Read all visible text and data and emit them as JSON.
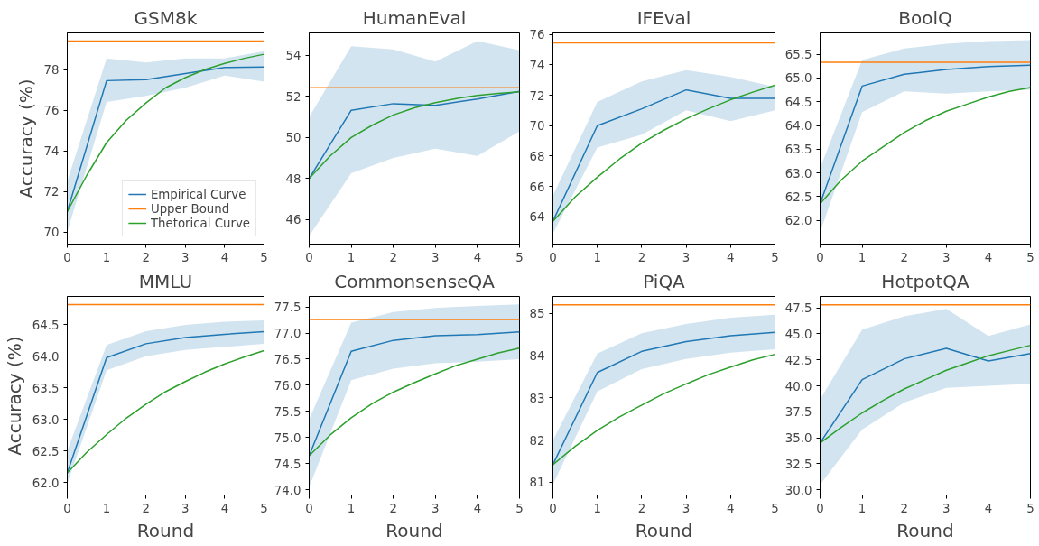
{
  "chart_data": [
    {
      "type": "line",
      "title": "GSM8k",
      "ylabel": "Accuracy (%)",
      "xlim": [
        0,
        5
      ],
      "ylim": [
        69.4,
        79.8
      ],
      "xticks": [
        0,
        1,
        2,
        3,
        4,
        5
      ],
      "yticks": [
        70,
        72,
        74,
        76,
        78
      ],
      "grid": false,
      "legend": "bottom right",
      "x": [
        0,
        1,
        2,
        3,
        4,
        5
      ],
      "series": [
        {
          "name": "Empirical Curve",
          "color": "#1f77b4",
          "values": [
            71.0,
            77.45,
            77.5,
            77.8,
            78.1,
            78.12
          ],
          "lower": [
            70.0,
            76.4,
            76.7,
            77.1,
            77.7,
            77.4
          ],
          "upper": [
            72.5,
            78.55,
            78.35,
            78.55,
            78.55,
            78.9
          ]
        },
        {
          "name": "Upper Bound",
          "color": "#ff7f0e",
          "x": [
            0,
            5
          ],
          "values": [
            79.4,
            79.4
          ]
        },
        {
          "name": "Thetorical Curve",
          "color": "#2ca02c",
          "x": [
            0,
            0.5,
            1,
            1.5,
            2,
            2.5,
            3,
            3.5,
            4,
            4.5,
            5
          ],
          "values": [
            71.0,
            72.8,
            74.4,
            75.5,
            76.35,
            77.1,
            77.6,
            78.0,
            78.3,
            78.55,
            78.75
          ]
        }
      ]
    },
    {
      "type": "line",
      "title": "HumanEval",
      "xlim": [
        0,
        5
      ],
      "ylim": [
        44.8,
        55.1
      ],
      "xticks": [
        0,
        1,
        2,
        3,
        4,
        5
      ],
      "yticks": [
        46,
        48,
        50,
        52,
        54
      ],
      "grid": false,
      "x": [
        0,
        1,
        2,
        3,
        4,
        5
      ],
      "series": [
        {
          "color": "#1f77b4",
          "values": [
            48.0,
            51.33,
            51.65,
            51.57,
            51.88,
            52.25
          ],
          "lower": [
            45.2,
            48.25,
            49.0,
            49.45,
            49.1,
            50.3
          ],
          "upper": [
            51.0,
            54.45,
            54.3,
            53.7,
            54.7,
            54.25
          ]
        },
        {
          "color": "#ff7f0e",
          "x": [
            0,
            5
          ],
          "values": [
            52.43,
            52.43
          ]
        },
        {
          "color": "#2ca02c",
          "x": [
            0,
            0.5,
            1,
            1.5,
            2,
            2.5,
            3,
            3.5,
            4,
            4.5,
            5
          ],
          "values": [
            48.0,
            49.1,
            50.0,
            50.6,
            51.1,
            51.45,
            51.7,
            51.9,
            52.05,
            52.15,
            52.23
          ]
        }
      ]
    },
    {
      "type": "line",
      "title": "IFEval",
      "xlim": [
        0,
        5
      ],
      "ylim": [
        62.2,
        76.1
      ],
      "xticks": [
        0,
        1,
        2,
        3,
        4,
        5
      ],
      "yticks": [
        64,
        66,
        68,
        70,
        72,
        74,
        76
      ],
      "grid": false,
      "x": [
        0,
        1,
        2,
        3,
        4,
        5
      ],
      "series": [
        {
          "color": "#1f77b4",
          "values": [
            63.7,
            70.0,
            71.1,
            72.35,
            71.8,
            71.8
          ],
          "lower": [
            62.9,
            68.55,
            69.4,
            71.0,
            70.3,
            71.0
          ],
          "upper": [
            65.4,
            71.55,
            72.9,
            73.65,
            73.2,
            72.55
          ]
        },
        {
          "color": "#ff7f0e",
          "x": [
            0,
            5
          ],
          "values": [
            75.45,
            75.45
          ]
        },
        {
          "color": "#2ca02c",
          "x": [
            0,
            0.5,
            1,
            1.5,
            2,
            2.5,
            3,
            3.5,
            4,
            4.5,
            5
          ],
          "values": [
            63.7,
            65.3,
            66.6,
            67.8,
            68.85,
            69.7,
            70.45,
            71.1,
            71.7,
            72.2,
            72.65
          ]
        }
      ]
    },
    {
      "type": "line",
      "title": "BoolQ",
      "xlim": [
        0,
        5
      ],
      "ylim": [
        61.5,
        65.95
      ],
      "xticks": [
        0,
        1,
        2,
        3,
        4,
        5
      ],
      "yticks": [
        {
          "value": 62,
          "label": "62.0"
        },
        62.5,
        {
          "value": 63,
          "label": "63.0"
        },
        63.5,
        {
          "value": 64,
          "label": "64.0"
        },
        64.5,
        {
          "value": 65,
          "label": "65.0"
        },
        65.5
      ],
      "grid": false,
      "x": [
        0,
        1,
        2,
        3,
        4,
        5
      ],
      "series": [
        {
          "color": "#1f77b4",
          "values": [
            62.35,
            64.83,
            65.08,
            65.18,
            65.24,
            65.27
          ],
          "lower": [
            61.75,
            64.28,
            64.72,
            64.67,
            64.72,
            64.75
          ],
          "upper": [
            63.1,
            65.38,
            65.62,
            65.72,
            65.78,
            65.8
          ]
        },
        {
          "color": "#ff7f0e",
          "x": [
            0,
            5
          ],
          "values": [
            65.33,
            65.33
          ]
        },
        {
          "color": "#2ca02c",
          "x": [
            0,
            0.5,
            1,
            1.5,
            2,
            2.5,
            3,
            3.5,
            4,
            4.5,
            5
          ],
          "values": [
            62.35,
            62.85,
            63.25,
            63.55,
            63.85,
            64.1,
            64.3,
            64.45,
            64.6,
            64.72,
            64.8
          ]
        }
      ]
    },
    {
      "type": "line",
      "title": "MMLU",
      "xlabel": "Round",
      "ylabel": "Accuracy (%)",
      "xlim": [
        0,
        5
      ],
      "ylim": [
        61.8,
        64.95
      ],
      "xticks": [
        0,
        1,
        2,
        3,
        4,
        5
      ],
      "yticks": [
        {
          "value": 62,
          "label": "62.0"
        },
        62.5,
        {
          "value": 63,
          "label": "63.0"
        },
        63.5,
        {
          "value": 64,
          "label": "64.0"
        },
        64.5
      ],
      "grid": false,
      "x": [
        0,
        1,
        2,
        3,
        4,
        5
      ],
      "series": [
        {
          "color": "#1f77b4",
          "values": [
            62.15,
            63.98,
            64.2,
            64.3,
            64.35,
            64.39
          ],
          "lower": [
            61.98,
            63.78,
            64.0,
            64.1,
            64.15,
            64.2
          ],
          "upper": [
            62.5,
            64.18,
            64.4,
            64.5,
            64.55,
            64.57
          ]
        },
        {
          "color": "#ff7f0e",
          "x": [
            0,
            5
          ],
          "values": [
            64.82,
            64.82
          ]
        },
        {
          "color": "#2ca02c",
          "x": [
            0,
            0.5,
            1,
            1.5,
            2,
            2.5,
            3,
            3.5,
            4,
            4.5,
            5
          ],
          "values": [
            62.15,
            62.48,
            62.76,
            63.02,
            63.24,
            63.44,
            63.6,
            63.75,
            63.88,
            63.99,
            64.09
          ]
        }
      ]
    },
    {
      "type": "line",
      "title": "CommonsenseQA",
      "xlabel": "Round",
      "xlim": [
        0,
        5
      ],
      "ylim": [
        73.9,
        77.7
      ],
      "xticks": [
        0,
        1,
        2,
        3,
        4,
        5
      ],
      "yticks": [
        {
          "value": 74,
          "label": "74.0"
        },
        74.5,
        {
          "value": 75,
          "label": "75.0"
        },
        75.5,
        {
          "value": 76,
          "label": "76.0"
        },
        76.5,
        {
          "value": 77,
          "label": "77.0"
        },
        77.5
      ],
      "grid": false,
      "x": [
        0,
        1,
        2,
        3,
        4,
        5
      ],
      "series": [
        {
          "color": "#1f77b4",
          "values": [
            74.65,
            76.65,
            76.86,
            76.95,
            76.97,
            77.02
          ],
          "lower": [
            74.05,
            76.1,
            76.32,
            76.42,
            76.45,
            76.5
          ],
          "upper": [
            75.35,
            77.2,
            77.4,
            77.48,
            77.52,
            77.55
          ]
        },
        {
          "color": "#ff7f0e",
          "x": [
            0,
            5
          ],
          "values": [
            77.26,
            77.26
          ]
        },
        {
          "color": "#2ca02c",
          "x": [
            0,
            0.5,
            1,
            1.5,
            2,
            2.5,
            3,
            3.5,
            4,
            4.5,
            5
          ],
          "values": [
            74.65,
            75.05,
            75.38,
            75.65,
            75.87,
            76.05,
            76.22,
            76.38,
            76.5,
            76.62,
            76.71
          ]
        }
      ]
    },
    {
      "type": "line",
      "title": "PiQA",
      "xlabel": "Round",
      "xlim": [
        0,
        5
      ],
      "ylim": [
        80.7,
        85.4
      ],
      "xticks": [
        0,
        1,
        2,
        3,
        4,
        5
      ],
      "yticks": [
        81,
        82,
        83,
        84,
        85
      ],
      "grid": false,
      "x": [
        0,
        1,
        2,
        3,
        4,
        5
      ],
      "series": [
        {
          "color": "#1f77b4",
          "values": [
            81.42,
            83.6,
            84.1,
            84.33,
            84.47,
            84.55
          ],
          "lower": [
            80.95,
            83.15,
            83.68,
            83.92,
            84.07,
            84.15
          ],
          "upper": [
            82.0,
            84.05,
            84.53,
            84.75,
            84.9,
            84.97
          ]
        },
        {
          "color": "#ff7f0e",
          "x": [
            0,
            5
          ],
          "values": [
            85.2,
            85.2
          ]
        },
        {
          "color": "#2ca02c",
          "x": [
            0,
            0.5,
            1,
            1.5,
            2,
            2.5,
            3,
            3.5,
            4,
            4.5,
            5
          ],
          "values": [
            81.42,
            81.85,
            82.23,
            82.55,
            82.83,
            83.1,
            83.33,
            83.55,
            83.73,
            83.9,
            84.03
          ]
        }
      ]
    },
    {
      "type": "line",
      "title": "HotpotQA",
      "xlabel": "Round",
      "xlim": [
        0,
        5
      ],
      "ylim": [
        29.5,
        48.6
      ],
      "xticks": [
        0,
        1,
        2,
        3,
        4,
        5
      ],
      "yticks": [
        {
          "value": 30,
          "label": "30.0"
        },
        32.5,
        {
          "value": 35,
          "label": "35.0"
        },
        37.5,
        {
          "value": 40,
          "label": "40.0"
        },
        42.5,
        {
          "value": 45,
          "label": "45.0"
        },
        47.5
      ],
      "grid": false,
      "x": [
        0,
        1,
        2,
        3,
        4,
        5
      ],
      "series": [
        {
          "color": "#1f77b4",
          "values": [
            34.5,
            40.6,
            42.6,
            43.6,
            42.4,
            43.1
          ],
          "lower": [
            30.5,
            35.8,
            38.4,
            39.8,
            40.0,
            40.2
          ],
          "upper": [
            38.7,
            45.4,
            46.7,
            47.4,
            44.8,
            45.9
          ]
        },
        {
          "color": "#ff7f0e",
          "x": [
            0,
            5
          ],
          "values": [
            47.8,
            47.8
          ]
        },
        {
          "color": "#2ca02c",
          "x": [
            0,
            0.5,
            1,
            1.5,
            2,
            2.5,
            3,
            3.5,
            4,
            4.5,
            5
          ],
          "values": [
            34.5,
            36.0,
            37.4,
            38.6,
            39.7,
            40.6,
            41.5,
            42.2,
            42.9,
            43.4,
            43.9
          ]
        }
      ]
    }
  ]
}
